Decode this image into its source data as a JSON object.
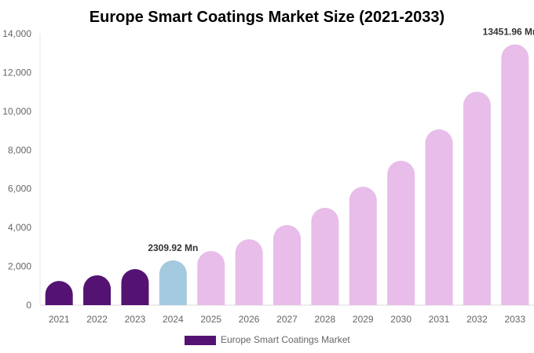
{
  "chart_data": {
    "type": "bar",
    "title": "Europe Smart Coatings Market Size (2021-2033)",
    "xlabel": "",
    "ylabel": "",
    "ylim": [
      0,
      14000
    ],
    "yticks": [
      "0",
      "2,000",
      "4,000",
      "6,000",
      "8,000",
      "10,000",
      "12,000",
      "14,000"
    ],
    "ytick_values": [
      0,
      2000,
      4000,
      6000,
      8000,
      10000,
      12000,
      14000
    ],
    "categories": [
      "2021",
      "2022",
      "2023",
      "2024",
      "2025",
      "2026",
      "2027",
      "2028",
      "2029",
      "2030",
      "2031",
      "2032",
      "2033"
    ],
    "series": [
      {
        "name": "Europe Smart Coatings Market",
        "values": [
          1250,
          1540,
          1860,
          2309.92,
          2790,
          3400,
          4130,
          5020,
          6110,
          7450,
          9070,
          11010,
          13451.96
        ]
      }
    ],
    "bar_colors": [
      "#541372",
      "#541372",
      "#541372",
      "#a4cadf",
      "#e8bde9",
      "#e8bde9",
      "#e8bde9",
      "#e8bde9",
      "#e8bde9",
      "#e8bde9",
      "#e8bde9",
      "#e8bde9",
      "#e8bde9"
    ],
    "data_labels": [
      {
        "index": 3,
        "text": "2309.92 Mn"
      },
      {
        "index": 12,
        "text": "13451.96 Mn"
      }
    ],
    "legend": {
      "position": "bottom",
      "label": "Europe Smart Coatings Market",
      "color": "#541372"
    },
    "grid": false
  }
}
